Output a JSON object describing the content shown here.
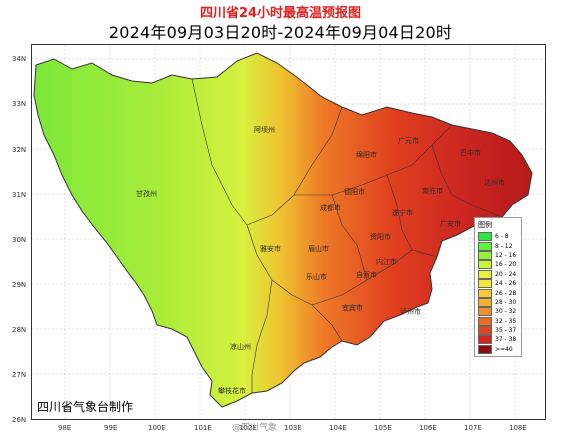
{
  "header": {
    "title": "四川省24小时最高温预报图",
    "subtitle": "2024年09月03日20时-2024年09月04日20时"
  },
  "axes": {
    "lat_ticks": [
      "34N",
      "33N",
      "32N",
      "31N",
      "30N",
      "29N",
      "28N",
      "27N",
      "26N"
    ],
    "lon_ticks": [
      "98E",
      "99E",
      "100E",
      "101E",
      "102E",
      "103E",
      "104E",
      "105E",
      "106E",
      "107E",
      "108E"
    ]
  },
  "cities": [
    "阿坝州",
    "绵阳市",
    "广元市",
    "巴中市",
    "达州市",
    "甘孜州",
    "德阳市",
    "南充市",
    "成都市",
    "遂宁市",
    "广安市",
    "雅安市",
    "眉山市",
    "资阳市",
    "乐山市",
    "内江市",
    "自贡市",
    "泸州市",
    "宜宾市",
    "凉山州",
    "攀枝花市"
  ],
  "legend": {
    "title": "图例",
    "items": [
      {
        "label": "6 - 8",
        "color": "#2ee640"
      },
      {
        "label": "8 - 12",
        "color": "#5ef23a"
      },
      {
        "label": "12 - 16",
        "color": "#94f536"
      },
      {
        "label": "16 - 20",
        "color": "#c6f53a"
      },
      {
        "label": "20 - 24",
        "color": "#e6f53c"
      },
      {
        "label": "24 - 26",
        "color": "#f5e63a"
      },
      {
        "label": "26 - 28",
        "color": "#f5cc33"
      },
      {
        "label": "28 - 30",
        "color": "#f5b02e"
      },
      {
        "label": "30 - 32",
        "color": "#f0902a"
      },
      {
        "label": "32 - 35",
        "color": "#ea6a26"
      },
      {
        "label": "35 - 37",
        "color": "#e04422"
      },
      {
        "label": "37 - 38",
        "color": "#cf2420"
      },
      {
        "label": ">=40",
        "color": "#8c0d10"
      }
    ]
  },
  "credit": "四川省气象台制作",
  "watermark": "@四川气象"
}
